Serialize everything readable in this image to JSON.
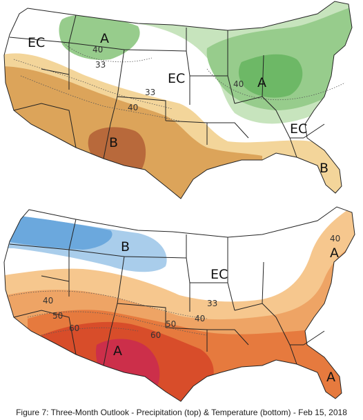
{
  "caption": "Figure 7: Three-Month Outlook - Precipitation (top) & Temperature (bottom) - Feb 15, 2018",
  "colors": {
    "above_light": "#c7e4bd",
    "above_mid": "#97cc8c",
    "above_strong": "#6db866",
    "below_light": "#f3d59a",
    "below_mid": "#dca45a",
    "below_strong": "#b8693b",
    "cold_light": "#a9cdeb",
    "cold_mid": "#6ba8dd",
    "warm_1": "#f6c78e",
    "warm_2": "#eea465",
    "warm_3": "#e67a3e",
    "warm_4": "#d84d2a",
    "warm_5": "#cc2f4a"
  },
  "precipitation_map": {
    "labels": {
      "ec_west": "EC",
      "ec_central": "EC",
      "ec_southeast": "EC",
      "a_north": "A",
      "a_east": "A",
      "b_southwest": "B",
      "b_florida": "B"
    },
    "contours": {
      "c40_north": "40",
      "c33_north": "33",
      "c40_east": "40",
      "c33_south": "33",
      "c40_south": "40"
    }
  },
  "temperature_map": {
    "labels": {
      "b_northwest": "B",
      "ec_central": "EC",
      "a_northeast": "A",
      "a_southwest": "A",
      "a_florida": "A"
    },
    "contours": {
      "c40_northeast": "40",
      "c40_west": "40",
      "c50_west": "50",
      "c60_west": "60",
      "c50_south": "50",
      "c60_south": "60",
      "c33_east": "33",
      "c40_east": "40"
    }
  }
}
